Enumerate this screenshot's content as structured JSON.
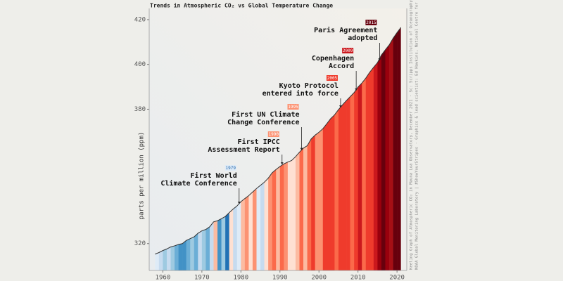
{
  "chart_data": {
    "type": "stripes-area",
    "title": "Trends in Atmospheric CO₂ vs Global Temperature Change",
    "y_label": "parts per million (ppm)",
    "x": [
      1958,
      1959,
      1960,
      1961,
      1962,
      1963,
      1964,
      1965,
      1966,
      1967,
      1968,
      1969,
      1970,
      1971,
      1972,
      1973,
      1974,
      1975,
      1976,
      1977,
      1978,
      1979,
      1980,
      1981,
      1982,
      1983,
      1984,
      1985,
      1986,
      1987,
      1988,
      1989,
      1990,
      1991,
      1992,
      1993,
      1994,
      1995,
      1996,
      1997,
      1998,
      1999,
      2000,
      2001,
      2002,
      2003,
      2004,
      2005,
      2006,
      2007,
      2008,
      2009,
      2010,
      2011,
      2012,
      2013,
      2014,
      2015,
      2016,
      2017,
      2018,
      2019,
      2020,
      2021
    ],
    "values": [
      315.3,
      316.0,
      316.9,
      317.6,
      318.5,
      319.0,
      319.6,
      320.0,
      321.4,
      322.2,
      323.0,
      324.6,
      325.7,
      326.3,
      327.5,
      329.7,
      330.2,
      331.1,
      332.1,
      333.8,
      335.4,
      336.8,
      338.7,
      340.1,
      341.4,
      343.0,
      344.6,
      346.0,
      347.4,
      349.2,
      351.6,
      353.1,
      354.4,
      355.6,
      356.4,
      357.1,
      358.8,
      360.8,
      362.6,
      363.7,
      366.7,
      368.4,
      369.7,
      371.3,
      373.5,
      375.8,
      377.5,
      379.8,
      381.9,
      383.8,
      385.6,
      387.4,
      389.9,
      391.7,
      393.9,
      396.5,
      398.7,
      400.8,
      404.2,
      406.5,
      408.7,
      411.7,
      414.2,
      416.5
    ],
    "stripe_colors": [
      "#deebf7",
      "#c6dbef",
      "#9ecae1",
      "#c6dbef",
      "#9ecae1",
      "#6baed6",
      "#4292c6",
      "#4292c6",
      "#6baed6",
      "#9ecae1",
      "#6baed6",
      "#c6dbef",
      "#9ecae1",
      "#6baed6",
      "#c6dbef",
      "#fcbba1",
      "#4292c6",
      "#9ecae1",
      "#2171b5",
      "#fee0d2",
      "#c6dbef",
      "#deebf7",
      "#fcbba1",
      "#fc9272",
      "#fee0d2",
      "#fc9272",
      "#deebf7",
      "#c6dbef",
      "#fee0d2",
      "#fc9272",
      "#fb6a4a",
      "#fcbba1",
      "#fb6a4a",
      "#fc9272",
      "#fee0d2",
      "#fee0d2",
      "#fcbba1",
      "#fb6a4a",
      "#fcbba1",
      "#fb6a4a",
      "#ef3b2c",
      "#fc9272",
      "#fc9272",
      "#ef3b2c",
      "#ef3b2c",
      "#ef3b2c",
      "#fb6a4a",
      "#ef3b2c",
      "#ef3b2c",
      "#ef3b2c",
      "#fb6a4a",
      "#ef3b2c",
      "#cb181d",
      "#fb6a4a",
      "#ef3b2c",
      "#ef3b2c",
      "#cb181d",
      "#99000d",
      "#67000d",
      "#99000d",
      "#a50f15",
      "#67000d",
      "#67000d",
      "#99000d"
    ],
    "line_color": "#333333",
    "xlim": [
      1956.5,
      2022.5
    ],
    "ylim": [
      308,
      425
    ],
    "xticks": [
      1960,
      1970,
      1980,
      1990,
      2000,
      2010,
      2020
    ],
    "yticks": [
      320,
      380,
      400,
      420
    ],
    "annotations": [
      {
        "x": 1979,
        "lines": [
          "First World",
          "Climate Conference"
        ],
        "color": "#deebf7"
      },
      {
        "x": 1990,
        "lines": [
          "First IPCC",
          "Assessment Report"
        ],
        "color": "#fc9272"
      },
      {
        "x": 1995,
        "lines": [
          "First UN Climate",
          "Change Conference"
        ],
        "color": "#fc9272"
      },
      {
        "x": 2005,
        "lines": [
          "Kyoto Protocol",
          "entered into force"
        ],
        "color": "#ef3b2c"
      },
      {
        "x": 2009,
        "lines": [
          "Copenhagen",
          "Accord"
        ],
        "color": "#cb181d"
      },
      {
        "x": 2015,
        "lines": [
          "Paris Agreement",
          "adopted"
        ],
        "color": "#67000d"
      }
    ],
    "credits": [
      "Keeling Graph of Atmospheric CO₂ in Mauna Loa Observatory, December 2021 · Sc: Scripps Institution of Oceanography &",
      "NOAA Global Monitoring Laboratory | #ShowYourStripes · Graphics & lead scientist: Ed Hawkins, National Centre for Atmospheric Science, University of Reading; Data: UK Met Office | Design by: @pierre | Licence: CC BY"
    ]
  }
}
